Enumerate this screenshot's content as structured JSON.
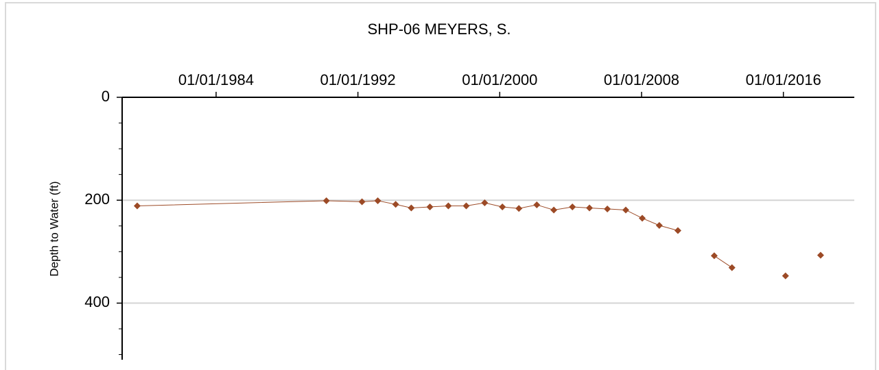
{
  "chart_data": {
    "type": "line",
    "title": "SHP-06  MEYERS, S.",
    "y_label": "Depth to Water (ft)",
    "x": [
      1979.55,
      1990.22,
      1992.23,
      1993.12,
      1994.13,
      1995.01,
      1996.06,
      1997.1,
      1998.11,
      1999.15,
      2000.15,
      2001.08,
      2002.09,
      2003.05,
      2004.1,
      2005.06,
      2006.07,
      2007.11,
      2008.04,
      2009.0,
      2010.05,
      null,
      2012.1,
      2013.1,
      null,
      2016.12,
      null,
      2018.1
    ],
    "series": [
      {
        "name": "Depth to Water",
        "color": "#9c4a26",
        "values": [
          211,
          201,
          203,
          201,
          208,
          215,
          213,
          211,
          211,
          205,
          213,
          216,
          209,
          219,
          213,
          215,
          217,
          219,
          235,
          249,
          259,
          null,
          308,
          331,
          null,
          347,
          null,
          307
        ]
      }
    ],
    "xlim": [
      1978.7,
      2020
    ],
    "xticks": [
      {
        "value": 1984,
        "label": "01/01/1984"
      },
      {
        "value": 1992,
        "label": "01/01/1992"
      },
      {
        "value": 2000,
        "label": "01/01/2000"
      },
      {
        "value": 2008,
        "label": "01/01/2008"
      },
      {
        "value": 2016,
        "label": "01/01/2016"
      }
    ],
    "ylim": [
      0,
      510
    ],
    "yticks": [
      0,
      200,
      400
    ],
    "yminorticks": [
      50,
      100,
      150,
      250,
      300,
      350,
      450,
      500
    ],
    "y_inverted": true,
    "x_axis_position": "top",
    "grid": true
  }
}
